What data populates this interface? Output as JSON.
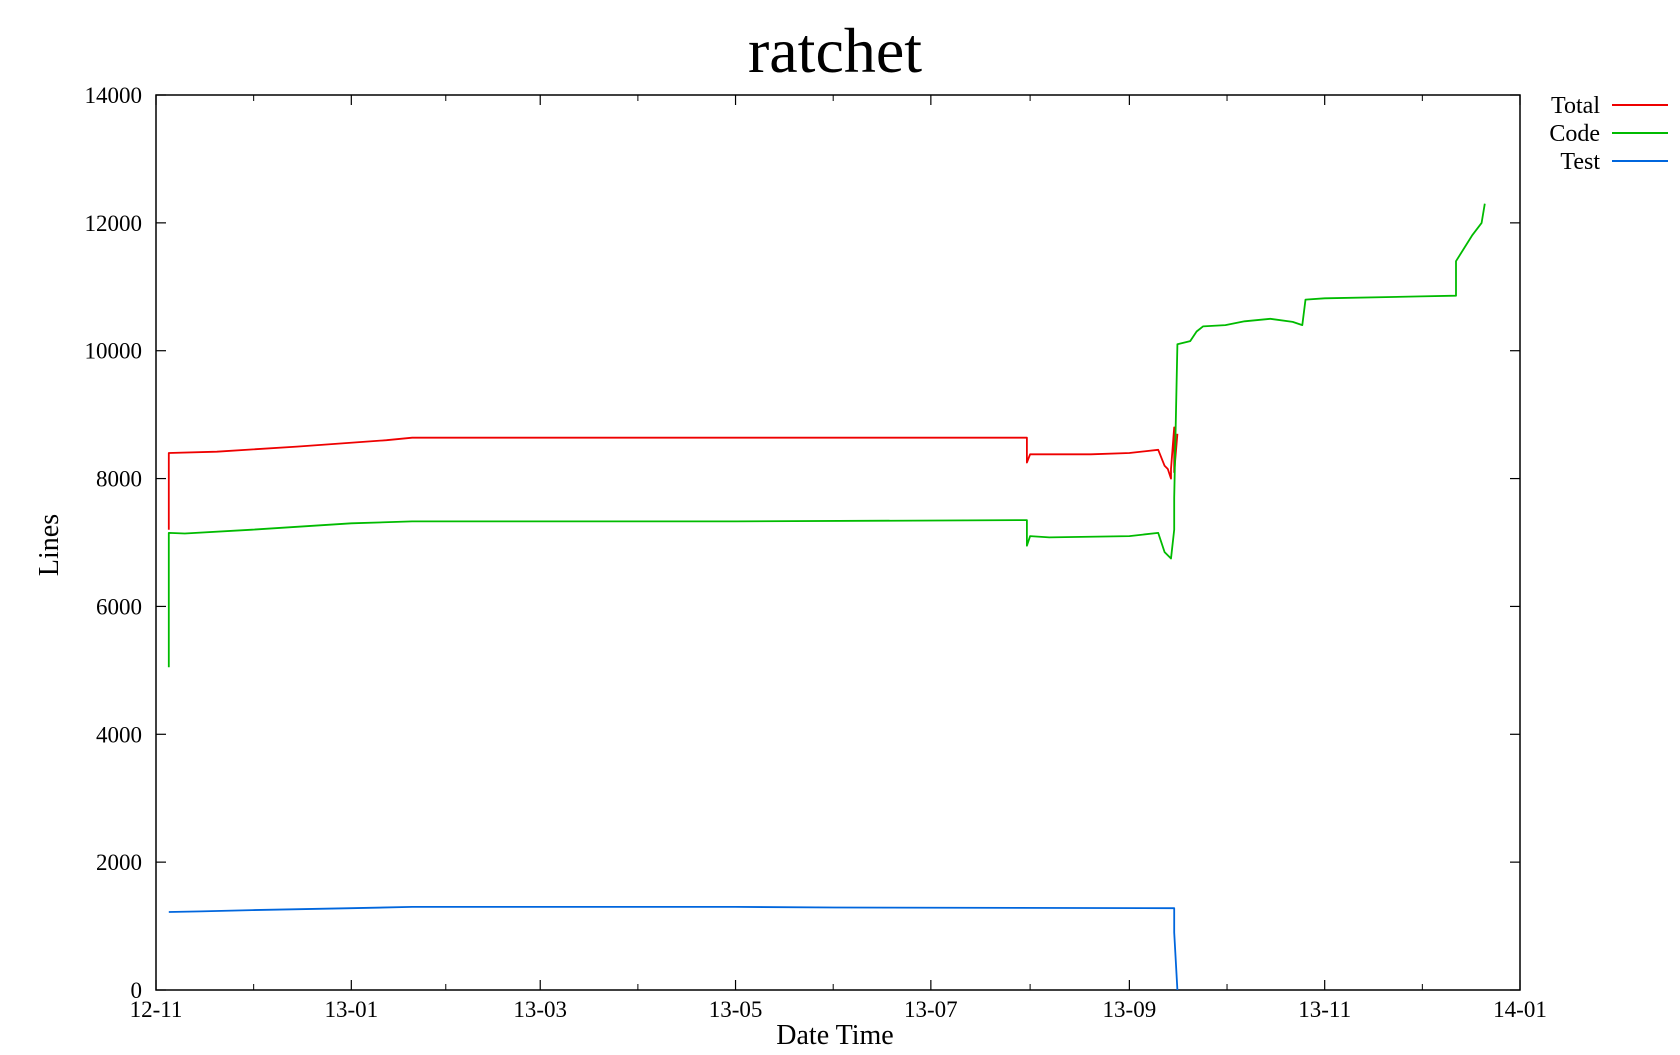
{
  "chart_data": {
    "type": "line",
    "title": "ratchet",
    "xlabel": "Date Time",
    "ylabel": "Lines",
    "xlim": [
      "2012-11-01",
      "2014-01-01"
    ],
    "ylim": [
      0,
      14000
    ],
    "x_ticks": [
      {
        "date": "2012-11-01",
        "label": "12-11"
      },
      {
        "date": "2013-01-01",
        "label": "13-01"
      },
      {
        "date": "2013-03-01",
        "label": "13-03"
      },
      {
        "date": "2013-05-01",
        "label": "13-05"
      },
      {
        "date": "2013-07-01",
        "label": "13-07"
      },
      {
        "date": "2013-09-01",
        "label": "13-09"
      },
      {
        "date": "2013-11-01",
        "label": "13-11"
      },
      {
        "date": "2014-01-01",
        "label": "14-01"
      }
    ],
    "y_ticks": [
      0,
      2000,
      4000,
      6000,
      8000,
      10000,
      12000,
      14000
    ],
    "grid": false,
    "legend_position": "top-right",
    "series": [
      {
        "name": "Total",
        "color": "#ee0000",
        "points": [
          [
            "2012-11-05",
            7200
          ],
          [
            "2012-11-05",
            8400
          ],
          [
            "2012-11-20",
            8420
          ],
          [
            "2012-12-15",
            8500
          ],
          [
            "2013-01-12",
            8600
          ],
          [
            "2013-01-20",
            8640
          ],
          [
            "2013-05-01",
            8640
          ],
          [
            "2013-07-31",
            8640
          ],
          [
            "2013-07-31",
            8250
          ],
          [
            "2013-08-01",
            8380
          ],
          [
            "2013-08-20",
            8380
          ],
          [
            "2013-09-01",
            8400
          ],
          [
            "2013-09-10",
            8450
          ],
          [
            "2013-09-12",
            8200
          ],
          [
            "2013-09-13",
            8150
          ],
          [
            "2013-09-14",
            8000
          ],
          [
            "2013-09-14",
            8150
          ],
          [
            "2013-09-15",
            8800
          ],
          [
            "2013-09-15",
            8100
          ],
          [
            "2013-09-16",
            8700
          ]
        ]
      },
      {
        "name": "Code",
        "color": "#00bb00",
        "points": [
          [
            "2012-11-05",
            5050
          ],
          [
            "2012-11-05",
            7150
          ],
          [
            "2012-11-10",
            7140
          ],
          [
            "2012-12-01",
            7200
          ],
          [
            "2013-01-01",
            7300
          ],
          [
            "2013-01-20",
            7330
          ],
          [
            "2013-05-01",
            7330
          ],
          [
            "2013-07-31",
            7350
          ],
          [
            "2013-07-31",
            6950
          ],
          [
            "2013-08-01",
            7100
          ],
          [
            "2013-08-07",
            7080
          ],
          [
            "2013-09-01",
            7100
          ],
          [
            "2013-09-10",
            7150
          ],
          [
            "2013-09-12",
            6850
          ],
          [
            "2013-09-14",
            6750
          ],
          [
            "2013-09-15",
            7200
          ],
          [
            "2013-09-15",
            7700
          ],
          [
            "2013-09-16",
            10100
          ],
          [
            "2013-09-20",
            10150
          ],
          [
            "2013-09-22",
            10300
          ],
          [
            "2013-09-24",
            10380
          ],
          [
            "2013-10-01",
            10400
          ],
          [
            "2013-10-07",
            10460
          ],
          [
            "2013-10-15",
            10500
          ],
          [
            "2013-10-22",
            10450
          ],
          [
            "2013-10-25",
            10400
          ],
          [
            "2013-10-26",
            10800
          ],
          [
            "2013-11-01",
            10820
          ],
          [
            "2013-12-01",
            10850
          ],
          [
            "2013-12-12",
            10860
          ],
          [
            "2013-12-12",
            11400
          ],
          [
            "2013-12-17",
            11800
          ],
          [
            "2013-12-20",
            12000
          ],
          [
            "2013-12-21",
            12300
          ]
        ]
      },
      {
        "name": "Test",
        "color": "#0066dd",
        "points": [
          [
            "2012-11-05",
            1220
          ],
          [
            "2012-11-15",
            1230
          ],
          [
            "2012-12-01",
            1250
          ],
          [
            "2013-01-01",
            1280
          ],
          [
            "2013-01-20",
            1300
          ],
          [
            "2013-05-01",
            1300
          ],
          [
            "2013-06-01",
            1290
          ],
          [
            "2013-09-15",
            1280
          ],
          [
            "2013-09-15",
            900
          ],
          [
            "2013-09-16",
            0
          ]
        ]
      }
    ]
  }
}
